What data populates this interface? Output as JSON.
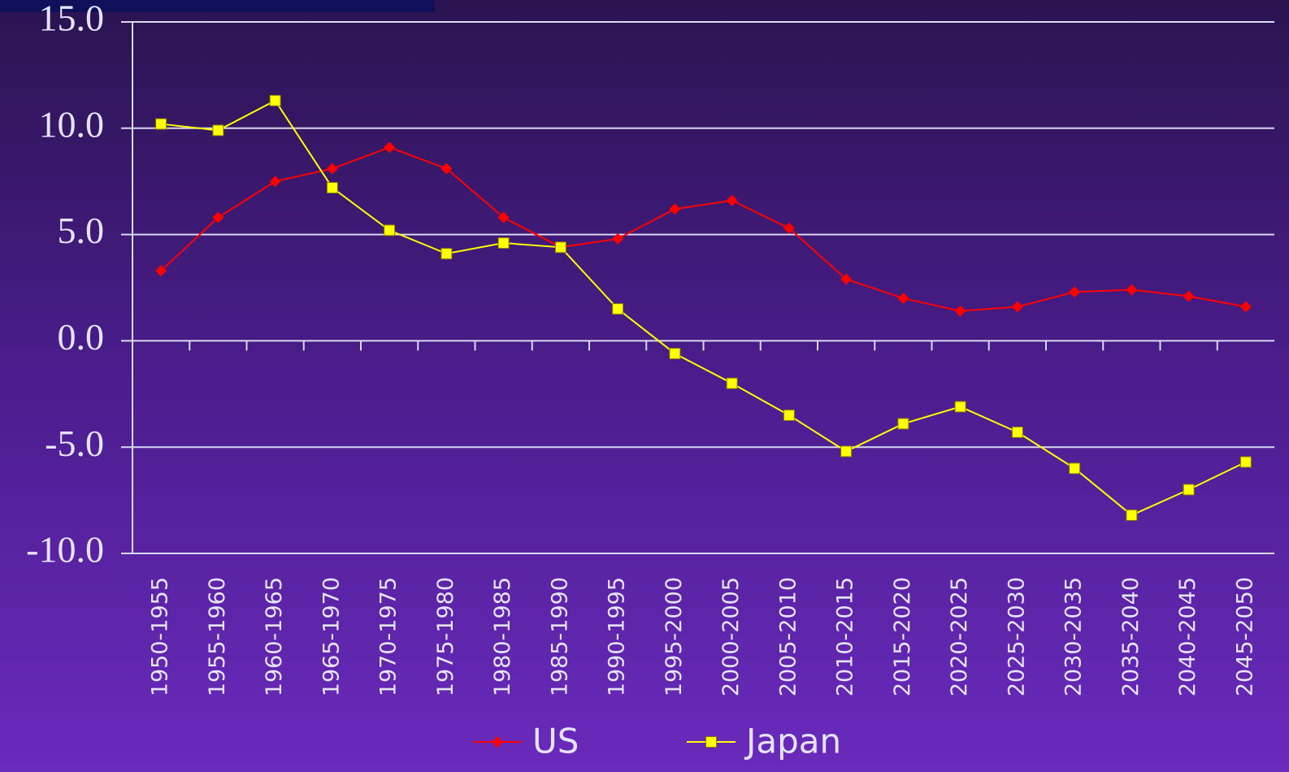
{
  "chart_data": {
    "type": "line",
    "categories": [
      "1950-1955",
      "1955-1960",
      "1960-1965",
      "1965-1970",
      "1970-1975",
      "1975-1980",
      "1980-1985",
      "1985-1990",
      "1990-1995",
      "1995-2000",
      "2000-2005",
      "2005-2010",
      "2010-2015",
      "2015-2020",
      "2020-2025",
      "2025-2030",
      "2030-2035",
      "2035-2040",
      "2040-2045",
      "2045-2050"
    ],
    "series": [
      {
        "name": "US",
        "color": "#ff0000",
        "marker": "diamond",
        "values": [
          3.3,
          5.8,
          7.5,
          8.1,
          9.1,
          8.1,
          5.8,
          4.4,
          4.8,
          6.2,
          6.6,
          5.3,
          2.9,
          2.0,
          1.4,
          1.6,
          2.3,
          2.4,
          2.1,
          1.6
        ]
      },
      {
        "name": "Japan",
        "color": "#ffff00",
        "marker": "square",
        "values": [
          10.2,
          9.9,
          11.3,
          7.2,
          5.2,
          4.1,
          4.6,
          4.4,
          1.5,
          -0.6,
          -2.0,
          -3.5,
          -5.2,
          -3.9,
          -3.1,
          -4.3,
          -6.0,
          -8.2,
          -7.0,
          -5.7
        ]
      }
    ],
    "ylim": [
      -10,
      15
    ],
    "yticks": [
      {
        "value": -10,
        "label": "-10.0"
      },
      {
        "value": -5,
        "label": "-5.0"
      },
      {
        "value": 0,
        "label": "0.0"
      },
      {
        "value": 5,
        "label": "5.0"
      },
      {
        "value": 10,
        "label": "10.0"
      },
      {
        "value": 15,
        "label": "15.0"
      }
    ],
    "grid": true,
    "legend": "bottom"
  }
}
